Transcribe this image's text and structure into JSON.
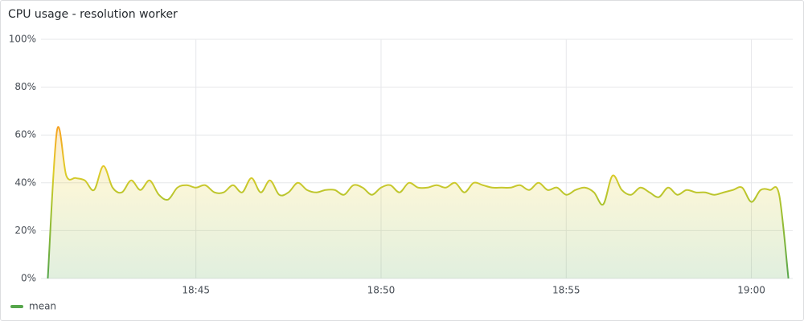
{
  "chart_data": {
    "type": "line",
    "title": "CPU usage - resolution worker",
    "x": [
      "18:41:00",
      "18:41:15",
      "18:41:30",
      "18:41:45",
      "18:42:00",
      "18:42:15",
      "18:42:30",
      "18:42:45",
      "18:43:00",
      "18:43:15",
      "18:43:30",
      "18:43:45",
      "18:44:00",
      "18:44:15",
      "18:44:30",
      "18:44:45",
      "18:45:00",
      "18:45:15",
      "18:45:30",
      "18:45:45",
      "18:46:00",
      "18:46:15",
      "18:46:30",
      "18:46:45",
      "18:47:00",
      "18:47:15",
      "18:47:30",
      "18:47:45",
      "18:48:00",
      "18:48:15",
      "18:48:30",
      "18:48:45",
      "18:49:00",
      "18:49:15",
      "18:49:30",
      "18:49:45",
      "18:50:00",
      "18:50:15",
      "18:50:30",
      "18:50:45",
      "18:51:00",
      "18:51:15",
      "18:51:30",
      "18:51:45",
      "18:52:00",
      "18:52:15",
      "18:52:30",
      "18:52:45",
      "18:53:00",
      "18:53:15",
      "18:53:30",
      "18:53:45",
      "18:54:00",
      "18:54:15",
      "18:54:30",
      "18:54:45",
      "18:55:00",
      "18:55:15",
      "18:55:30",
      "18:55:45",
      "18:56:00",
      "18:56:15",
      "18:56:30",
      "18:56:45",
      "18:57:00",
      "18:57:15",
      "18:57:30",
      "18:57:45",
      "18:58:00",
      "18:58:15",
      "18:58:30",
      "18:58:45",
      "18:59:00",
      "18:59:15",
      "18:59:30",
      "18:59:45",
      "19:00:00",
      "19:00:15",
      "19:00:30",
      "19:00:45",
      "19:01:00"
    ],
    "series": [
      {
        "name": "mean",
        "color": "#56a64b",
        "values": [
          0,
          62,
          43,
          42,
          41,
          37,
          47,
          38,
          36,
          41,
          37,
          41,
          35,
          33,
          38,
          39,
          38,
          39,
          36,
          36,
          39,
          36,
          42,
          36,
          41,
          35,
          36,
          40,
          37,
          36,
          37,
          37,
          35,
          39,
          38,
          35,
          38,
          39,
          36,
          40,
          38,
          38,
          39,
          38,
          40,
          36,
          40,
          39,
          38,
          38,
          38,
          39,
          37,
          40,
          37,
          38,
          35,
          37,
          38,
          36,
          31,
          43,
          37,
          35,
          38,
          36,
          34,
          38,
          35,
          37,
          36,
          36,
          35,
          36,
          37,
          38,
          32,
          37,
          37,
          35,
          0
        ]
      }
    ],
    "xlim": [
      "18:40:49",
      "19:01:07"
    ],
    "xticks": [
      "18:45",
      "18:50",
      "18:55",
      "19:00"
    ],
    "ylim": [
      0,
      100
    ],
    "yticks": [
      {
        "value": 0,
        "label": "0%"
      },
      {
        "value": 20,
        "label": "20%"
      },
      {
        "value": 40,
        "label": "40%"
      },
      {
        "value": 60,
        "label": "60%"
      },
      {
        "value": 80,
        "label": "80%"
      },
      {
        "value": 100,
        "label": "100%"
      }
    ],
    "grid": true
  }
}
